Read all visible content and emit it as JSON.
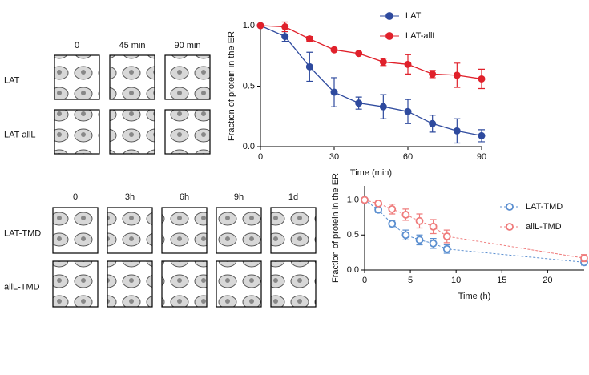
{
  "image_grids": [
    {
      "columns": [
        "0",
        "45 min",
        "90 min"
      ],
      "rows": [
        "LAT",
        "LAT-allL"
      ]
    },
    {
      "columns": [
        "0",
        "3h",
        "6h",
        "9h",
        "1d"
      ],
      "rows": [
        "LAT-TMD",
        "allL-TMD"
      ]
    }
  ],
  "chart_data": [
    {
      "type": "scatter",
      "x_label": "Time (min)",
      "y_label": "Fraction of protein in the ER",
      "xlim": [
        0,
        90
      ],
      "xticks": [
        0,
        30,
        60,
        90
      ],
      "ylim": [
        0,
        1
      ],
      "yticks": [
        {
          "value": 0,
          "label": "0.0"
        },
        {
          "value": 0.5,
          "label": "0.5"
        },
        {
          "value": 1,
          "label": "1.0"
        }
      ],
      "marker": "filled",
      "line_style": "solid",
      "series": [
        {
          "name": "LAT",
          "color": "#2e4a9e",
          "x": [
            0,
            10,
            20,
            30,
            40,
            50,
            60,
            70,
            80,
            90
          ],
          "values": [
            1,
            0.91,
            0.66,
            0.45,
            0.36,
            0.33,
            0.29,
            0.19,
            0.13,
            0.09
          ],
          "errors": [
            0,
            0.04,
            0.12,
            0.12,
            0.05,
            0.1,
            0.1,
            0.07,
            0.1,
            0.05
          ]
        },
        {
          "name": "LAT-allL",
          "color": "#e0212b",
          "x": [
            0,
            10,
            20,
            30,
            40,
            50,
            60,
            70,
            80,
            90
          ],
          "values": [
            1,
            0.99,
            0.89,
            0.8,
            0.77,
            0.7,
            0.68,
            0.6,
            0.59,
            0.56
          ],
          "errors": [
            0,
            0.04,
            0.02,
            0.01,
            0.01,
            0.03,
            0.08,
            0.03,
            0.1,
            0.08
          ]
        }
      ]
    },
    {
      "type": "scatter",
      "x_label": "Time (h)",
      "y_label": "Fraction of protein in the ER",
      "xlim": [
        0,
        24
      ],
      "xticks": [
        0,
        5,
        10,
        15,
        20
      ],
      "ylim": [
        0,
        1.2
      ],
      "yticks": [
        {
          "value": 0,
          "label": "0.0"
        },
        {
          "value": 0.5,
          "label": "0.5"
        },
        {
          "value": 1,
          "label": "1.0"
        }
      ],
      "marker": "open",
      "line_style": "dashed",
      "series": [
        {
          "name": "LAT-TMD",
          "color": "#5b8fd0",
          "x": [
            0,
            1.5,
            3,
            4.5,
            6,
            7.5,
            9,
            24
          ],
          "values": [
            1,
            0.86,
            0.66,
            0.5,
            0.43,
            0.38,
            0.3,
            0.11
          ],
          "errors": [
            0,
            0.04,
            0.04,
            0.07,
            0.07,
            0.07,
            0.06,
            0.04
          ]
        },
        {
          "name": "allL-TMD",
          "color": "#ef7b7b",
          "x": [
            0,
            1.5,
            3,
            4.5,
            6,
            7.5,
            9,
            24
          ],
          "values": [
            1,
            0.95,
            0.87,
            0.79,
            0.7,
            0.62,
            0.48,
            0.17
          ],
          "errors": [
            0,
            0.03,
            0.07,
            0.08,
            0.1,
            0.1,
            0.09,
            0.05
          ]
        }
      ]
    }
  ]
}
